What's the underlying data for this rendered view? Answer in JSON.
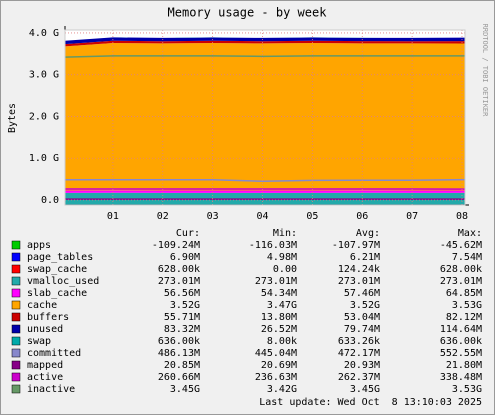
{
  "chart_data": {
    "type": "area",
    "title": "Memory usage - by week",
    "y_label": "Bytes",
    "side_text": "RRDTOOL / TOBI OETIKER",
    "x": [
      0.04,
      1,
      2,
      3,
      4,
      5,
      6,
      7,
      8.06
    ],
    "xlim": [
      0.04,
      8.06
    ],
    "xticks": [
      {
        "value": 1,
        "label": "01"
      },
      {
        "value": 2,
        "label": "02"
      },
      {
        "value": 3,
        "label": "03"
      },
      {
        "value": 4,
        "label": "04"
      },
      {
        "value": 5,
        "label": "05"
      },
      {
        "value": 6,
        "label": "06"
      },
      {
        "value": 7,
        "label": "07"
      },
      {
        "value": 8,
        "label": "08"
      }
    ],
    "ylim": [
      -120000000,
      4070000000
    ],
    "yticks": [
      {
        "value": 0,
        "label": "0.0"
      },
      {
        "value": 1000000000,
        "label": "1.0 G"
      },
      {
        "value": 2000000000,
        "label": "2.0 G"
      },
      {
        "value": 3000000000,
        "label": "3.0 G"
      },
      {
        "value": 4000000000,
        "label": "4.0 G"
      }
    ],
    "grid": true,
    "legend_headers": [
      "Cur:",
      "Min:",
      "Avg:",
      "Max:"
    ],
    "series": [
      {
        "name": "apps",
        "color": "#00cc00",
        "draw": "area",
        "values": [
          -108000000,
          -107000000,
          -108000000,
          -109000000,
          -108000000,
          -108000000,
          -107000000,
          -108000000,
          -109240000
        ],
        "stats": {
          "cur": "-109.24M",
          "min": "-116.03M",
          "avg": "-107.97M",
          "max": "-45.62M"
        }
      },
      {
        "name": "page_tables",
        "color": "#0000ff",
        "draw": "area",
        "values": [
          6200000,
          6200000,
          6200000,
          6200000,
          6200000,
          6200000,
          6200000,
          6200000,
          6900000
        ],
        "stats": {
          "cur": "6.90M",
          "min": "4.98M",
          "avg": "6.21M",
          "max": "7.54M"
        }
      },
      {
        "name": "swap_cache",
        "color": "#ff0000",
        "draw": "area",
        "values": [
          124000,
          124000,
          124000,
          124000,
          124000,
          124000,
          124000,
          124000,
          628000
        ],
        "stats": {
          "cur": "628.00k",
          "min": "0.00",
          "avg": "124.24k",
          "max": "628.00k"
        }
      },
      {
        "name": "vmalloc_used",
        "color": "#22aaaa",
        "draw": "area",
        "values": [
          273010000,
          273010000,
          273010000,
          273010000,
          273010000,
          273010000,
          273010000,
          273010000,
          273010000
        ],
        "stats": {
          "cur": "273.01M",
          "min": "273.01M",
          "avg": "273.01M",
          "max": "273.01M"
        }
      },
      {
        "name": "slab_cache",
        "color": "#ff00ff",
        "draw": "area",
        "values": [
          57000000,
          57000000,
          57000000,
          58000000,
          57000000,
          57000000,
          58000000,
          57000000,
          56560000
        ],
        "stats": {
          "cur": "56.56M",
          "min": "54.34M",
          "avg": "57.46M",
          "max": "64.85M"
        }
      },
      {
        "name": "cache",
        "color": "#ffa500",
        "draw": "area",
        "values": [
          3450000000,
          3530000000,
          3520000000,
          3530000000,
          3520000000,
          3530000000,
          3520000000,
          3520000000,
          3520000000
        ],
        "stats": {
          "cur": "3.52G",
          "min": "3.47G",
          "avg": "3.52G",
          "max": "3.53G"
        }
      },
      {
        "name": "buffers",
        "color": "#cc0000",
        "draw": "area",
        "values": [
          53000000,
          53000000,
          53000000,
          53000000,
          53000000,
          53000000,
          53000000,
          53000000,
          55710000
        ],
        "stats": {
          "cur": "55.71M",
          "min": "13.80M",
          "avg": "53.04M",
          "max": "82.12M"
        }
      },
      {
        "name": "unused",
        "color": "#0000aa",
        "draw": "area",
        "values": [
          80000000,
          80000000,
          79000000,
          80000000,
          79000000,
          80000000,
          79000000,
          80000000,
          83320000
        ],
        "stats": {
          "cur": "83.32M",
          "min": "26.52M",
          "avg": "79.74M",
          "max": "114.64M"
        }
      },
      {
        "name": "swap",
        "color": "#00aaaa",
        "draw": "area",
        "values": [
          636000,
          636000,
          636000,
          636000,
          636000,
          636000,
          636000,
          636000,
          636000
        ],
        "stats": {
          "cur": "636.00k",
          "min": "8.00k",
          "avg": "633.26k",
          "max": "636.00k"
        }
      },
      {
        "name": "committed",
        "color": "#8888cc",
        "draw": "line",
        "values": [
          486000000,
          486000000,
          486000000,
          486000000,
          448000000,
          470000000,
          472000000,
          472000000,
          486130000
        ],
        "stats": {
          "cur": "486.13M",
          "min": "445.04M",
          "avg": "472.17M",
          "max": "552.55M"
        }
      },
      {
        "name": "mapped",
        "color": "#880088",
        "draw": "line",
        "values": [
          20900000,
          20900000,
          20900000,
          20900000,
          20900000,
          20900000,
          20900000,
          20900000,
          20850000
        ],
        "stats": {
          "cur": "20.85M",
          "min": "20.69M",
          "avg": "20.93M",
          "max": "21.80M"
        }
      },
      {
        "name": "active",
        "color": "#cc00cc",
        "draw": "line",
        "values": [
          262000000,
          262000000,
          262000000,
          262000000,
          262000000,
          262000000,
          262000000,
          262000000,
          260660000
        ],
        "stats": {
          "cur": "260.66M",
          "min": "236.63M",
          "avg": "262.37M",
          "max": "338.48M"
        }
      },
      {
        "name": "inactive",
        "color": "#669966",
        "draw": "line",
        "values": [
          3420000000,
          3450000000,
          3450000000,
          3450000000,
          3440000000,
          3450000000,
          3450000000,
          3450000000,
          3450000000
        ],
        "stats": {
          "cur": "3.45G",
          "min": "3.42G",
          "avg": "3.45G",
          "max": "3.53G"
        }
      }
    ],
    "last_update": "Last update: Wed Oct  8 13:10:03 2025"
  }
}
